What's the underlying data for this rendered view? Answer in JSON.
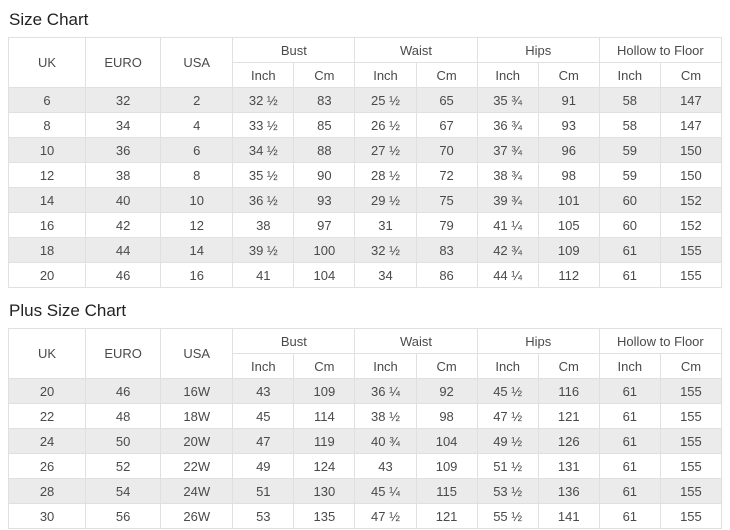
{
  "colors": {
    "row_shade": "#ebebeb",
    "border": "#e0e0e0",
    "cell_text": "#4a4a4a",
    "title_text": "#222222"
  },
  "header": {
    "simple_cols": [
      "UK",
      "EURO",
      "USA"
    ],
    "groups": [
      "Bust",
      "Waist",
      "Hips",
      "Hollow to Floor"
    ],
    "sub_cols": [
      "Inch",
      "Cm"
    ]
  },
  "tables": [
    {
      "title": "Size Chart",
      "rows": [
        [
          "6",
          "32",
          "2",
          "32 ½",
          "83",
          "25 ½",
          "65",
          "35 ¾",
          "91",
          "58",
          "147"
        ],
        [
          "8",
          "34",
          "4",
          "33 ½",
          "85",
          "26 ½",
          "67",
          "36 ¾",
          "93",
          "58",
          "147"
        ],
        [
          "10",
          "36",
          "6",
          "34 ½",
          "88",
          "27 ½",
          "70",
          "37 ¾",
          "96",
          "59",
          "150"
        ],
        [
          "12",
          "38",
          "8",
          "35 ½",
          "90",
          "28 ½",
          "72",
          "38 ¾",
          "98",
          "59",
          "150"
        ],
        [
          "14",
          "40",
          "10",
          "36 ½",
          "93",
          "29 ½",
          "75",
          "39 ¾",
          "101",
          "60",
          "152"
        ],
        [
          "16",
          "42",
          "12",
          "38",
          "97",
          "31",
          "79",
          "41 ¼",
          "105",
          "60",
          "152"
        ],
        [
          "18",
          "44",
          "14",
          "39 ½",
          "100",
          "32 ½",
          "83",
          "42 ¾",
          "109",
          "61",
          "155"
        ],
        [
          "20",
          "46",
          "16",
          "41",
          "104",
          "34",
          "86",
          "44 ¼",
          "112",
          "61",
          "155"
        ]
      ]
    },
    {
      "title": "Plus Size Chart",
      "rows": [
        [
          "20",
          "46",
          "16W",
          "43",
          "109",
          "36 ¼",
          "92",
          "45 ½",
          "116",
          "61",
          "155"
        ],
        [
          "22",
          "48",
          "18W",
          "45",
          "114",
          "38 ½",
          "98",
          "47 ½",
          "121",
          "61",
          "155"
        ],
        [
          "24",
          "50",
          "20W",
          "47",
          "119",
          "40 ¾",
          "104",
          "49 ½",
          "126",
          "61",
          "155"
        ],
        [
          "26",
          "52",
          "22W",
          "49",
          "124",
          "43",
          "109",
          "51 ½",
          "131",
          "61",
          "155"
        ],
        [
          "28",
          "54",
          "24W",
          "51",
          "130",
          "45 ¼",
          "115",
          "53 ½",
          "136",
          "61",
          "155"
        ],
        [
          "30",
          "56",
          "26W",
          "53",
          "135",
          "47 ½",
          "121",
          "55 ½",
          "141",
          "61",
          "155"
        ]
      ]
    }
  ]
}
